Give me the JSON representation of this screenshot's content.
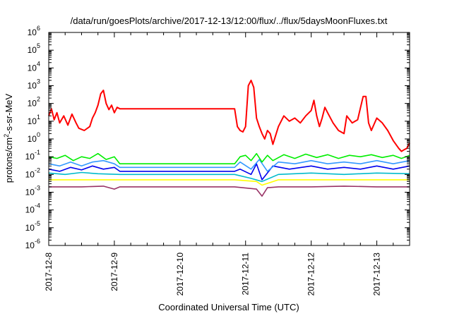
{
  "chart_data": {
    "type": "line",
    "title": "/data/run/goesPlots/archive/2017-12-13/12:00/flux/../flux/5daysMoonFluxes.txt",
    "xlabel": "Coordinated Universal Time (UTC)",
    "ylabel": "protons/cm²-s-sr-MeV",
    "yscale": "log",
    "ylim": [
      1e-06,
      1000000.0
    ],
    "xlim": [
      "2017-12-08T00:00",
      "2017-12-13T12:00"
    ],
    "x_ticks": [
      "2017-12-8",
      "2017-12-9",
      "2017-12-10",
      "2017-12-11",
      "2017-12-12",
      "2017-12-13"
    ],
    "y_ticks": [
      {
        "base": "10",
        "exp": "6"
      },
      {
        "base": "10",
        "exp": "5"
      },
      {
        "base": "10",
        "exp": "4"
      },
      {
        "base": "10",
        "exp": "3"
      },
      {
        "base": "10",
        "exp": "2"
      },
      {
        "base": "10",
        "exp": "1"
      },
      {
        "base": "10",
        "exp": "0"
      },
      {
        "base": "10",
        "exp": "-1"
      },
      {
        "base": "10",
        "exp": "-2"
      },
      {
        "base": "10",
        "exp": "-3"
      },
      {
        "base": "10",
        "exp": "-4"
      },
      {
        "base": "10",
        "exp": "-5"
      },
      {
        "base": "10",
        "exp": "-6"
      }
    ],
    "grid": false,
    "legend": "none",
    "series": [
      {
        "color": "#ff0000",
        "points": [
          [
            "2017-12-08T00:00",
            20
          ],
          [
            "2017-12-08T01:00",
            50
          ],
          [
            "2017-12-08T02:00",
            12
          ],
          [
            "2017-12-08T03:00",
            30
          ],
          [
            "2017-12-08T04:00",
            8
          ],
          [
            "2017-12-08T05:30",
            20
          ],
          [
            "2017-12-08T07:00",
            6
          ],
          [
            "2017-12-08T08:30",
            25
          ],
          [
            "2017-12-08T10:00",
            8
          ],
          [
            "2017-12-08T11:00",
            4
          ],
          [
            "2017-12-08T13:00",
            3
          ],
          [
            "2017-12-08T15:00",
            5
          ],
          [
            "2017-12-08T16:00",
            15
          ],
          [
            "2017-12-08T17:00",
            30
          ],
          [
            "2017-12-08T18:00",
            80
          ],
          [
            "2017-12-08T19:00",
            350
          ],
          [
            "2017-12-08T20:00",
            550
          ],
          [
            "2017-12-08T21:00",
            100
          ],
          [
            "2017-12-08T22:00",
            45
          ],
          [
            "2017-12-08T23:00",
            80
          ],
          [
            "2017-12-09T00:00",
            30
          ],
          [
            "2017-12-09T01:00",
            60
          ],
          [
            "2017-12-09T02:00",
            50
          ],
          [
            "2017-12-10T20:00",
            50
          ],
          [
            "2017-12-10T21:00",
            5
          ],
          [
            "2017-12-10T22:00",
            3
          ],
          [
            "2017-12-10T23:00",
            2.5
          ],
          [
            "2017-12-11T00:00",
            5
          ],
          [
            "2017-12-11T01:00",
            1000
          ],
          [
            "2017-12-11T02:00",
            2000
          ],
          [
            "2017-12-11T03:00",
            800
          ],
          [
            "2017-12-11T04:00",
            15
          ],
          [
            "2017-12-11T05:00",
            5
          ],
          [
            "2017-12-11T06:00",
            2
          ],
          [
            "2017-12-11T07:00",
            1
          ],
          [
            "2017-12-11T08:00",
            3
          ],
          [
            "2017-12-11T09:00",
            2
          ],
          [
            "2017-12-11T10:00",
            0.5
          ],
          [
            "2017-12-11T12:00",
            5
          ],
          [
            "2017-12-11T14:00",
            20
          ],
          [
            "2017-12-11T16:00",
            10
          ],
          [
            "2017-12-11T18:00",
            15
          ],
          [
            "2017-12-11T20:00",
            8
          ],
          [
            "2017-12-11T22:00",
            20
          ],
          [
            "2017-12-12T00:00",
            40
          ],
          [
            "2017-12-12T01:00",
            150
          ],
          [
            "2017-12-12T02:00",
            20
          ],
          [
            "2017-12-12T03:00",
            5
          ],
          [
            "2017-12-12T04:00",
            15
          ],
          [
            "2017-12-12T05:00",
            60
          ],
          [
            "2017-12-12T06:00",
            30
          ],
          [
            "2017-12-12T08:00",
            8
          ],
          [
            "2017-12-12T10:00",
            3
          ],
          [
            "2017-12-12T12:00",
            2
          ],
          [
            "2017-12-12T13:00",
            20
          ],
          [
            "2017-12-12T15:00",
            8
          ],
          [
            "2017-12-12T17:00",
            12
          ],
          [
            "2017-12-12T19:00",
            250
          ],
          [
            "2017-12-12T20:00",
            250
          ],
          [
            "2017-12-12T21:00",
            8
          ],
          [
            "2017-12-12T22:00",
            3
          ],
          [
            "2017-12-13T00:00",
            15
          ],
          [
            "2017-12-13T02:00",
            8
          ],
          [
            "2017-12-13T04:00",
            3
          ],
          [
            "2017-12-13T06:00",
            0.8
          ],
          [
            "2017-12-13T08:00",
            0.3
          ],
          [
            "2017-12-13T09:00",
            0.2
          ],
          [
            "2017-12-13T10:00",
            0.25
          ],
          [
            "2017-12-13T11:00",
            0.3
          ],
          [
            "2017-12-13T12:00",
            0.6
          ]
        ]
      },
      {
        "color": "#00ee00",
        "points": [
          [
            "2017-12-08T00:00",
            0.1
          ],
          [
            "2017-12-08T03:00",
            0.08
          ],
          [
            "2017-12-08T06:00",
            0.12
          ],
          [
            "2017-12-08T09:00",
            0.06
          ],
          [
            "2017-12-08T12:00",
            0.1
          ],
          [
            "2017-12-08T15:00",
            0.08
          ],
          [
            "2017-12-08T18:00",
            0.15
          ],
          [
            "2017-12-08T21:00",
            0.07
          ],
          [
            "2017-12-09T00:00",
            0.1
          ],
          [
            "2017-12-09T02:00",
            0.04
          ],
          [
            "2017-12-10T20:00",
            0.04
          ],
          [
            "2017-12-10T22:00",
            0.1
          ],
          [
            "2017-12-11T00:00",
            0.12
          ],
          [
            "2017-12-11T02:00",
            0.06
          ],
          [
            "2017-12-11T04:00",
            0.15
          ],
          [
            "2017-12-11T06:00",
            0.05
          ],
          [
            "2017-12-11T08:00",
            0.12
          ],
          [
            "2017-12-11T10:00",
            0.06
          ],
          [
            "2017-12-11T14:00",
            0.13
          ],
          [
            "2017-12-11T18:00",
            0.08
          ],
          [
            "2017-12-11T22:00",
            0.14
          ],
          [
            "2017-12-12T02:00",
            0.09
          ],
          [
            "2017-12-12T06:00",
            0.13
          ],
          [
            "2017-12-12T10:00",
            0.08
          ],
          [
            "2017-12-12T14:00",
            0.12
          ],
          [
            "2017-12-12T18:00",
            0.1
          ],
          [
            "2017-12-12T22:00",
            0.13
          ],
          [
            "2017-12-13T02:00",
            0.09
          ],
          [
            "2017-12-13T06:00",
            0.12
          ],
          [
            "2017-12-13T09:00",
            0.08
          ],
          [
            "2017-12-13T12:00",
            0.12
          ]
        ]
      },
      {
        "color": "#3399ff",
        "points": [
          [
            "2017-12-08T00:00",
            0.04
          ],
          [
            "2017-12-08T04:00",
            0.03
          ],
          [
            "2017-12-08T08:00",
            0.05
          ],
          [
            "2017-12-08T12:00",
            0.03
          ],
          [
            "2017-12-08T16:00",
            0.05
          ],
          [
            "2017-12-08T20:00",
            0.06
          ],
          [
            "2017-12-09T00:00",
            0.04
          ],
          [
            "2017-12-09T02:00",
            0.025
          ],
          [
            "2017-12-10T20:00",
            0.025
          ],
          [
            "2017-12-10T22:00",
            0.05
          ],
          [
            "2017-12-11T02:00",
            0.02
          ],
          [
            "2017-12-11T05:00",
            0.07
          ],
          [
            "2017-12-11T08:00",
            0.015
          ],
          [
            "2017-12-11T12:00",
            0.05
          ],
          [
            "2017-12-11T18:00",
            0.04
          ],
          [
            "2017-12-12T00:00",
            0.06
          ],
          [
            "2017-12-12T06:00",
            0.04
          ],
          [
            "2017-12-12T12:00",
            0.05
          ],
          [
            "2017-12-12T18:00",
            0.04
          ],
          [
            "2017-12-13T00:00",
            0.06
          ],
          [
            "2017-12-13T06:00",
            0.04
          ],
          [
            "2017-12-13T12:00",
            0.06
          ]
        ]
      },
      {
        "color": "#0000ee",
        "points": [
          [
            "2017-12-08T00:00",
            0.02
          ],
          [
            "2017-12-08T04:00",
            0.015
          ],
          [
            "2017-12-08T08:00",
            0.025
          ],
          [
            "2017-12-08T12:00",
            0.018
          ],
          [
            "2017-12-08T16:00",
            0.03
          ],
          [
            "2017-12-08T20:00",
            0.02
          ],
          [
            "2017-12-09T00:00",
            0.025
          ],
          [
            "2017-12-09T02:00",
            0.015
          ],
          [
            "2017-12-10T20:00",
            0.015
          ],
          [
            "2017-12-10T22:00",
            0.02
          ],
          [
            "2017-12-11T02:00",
            0.01
          ],
          [
            "2017-12-11T04:00",
            0.04
          ],
          [
            "2017-12-11T06:00",
            0.005
          ],
          [
            "2017-12-11T10:00",
            0.03
          ],
          [
            "2017-12-11T16:00",
            0.02
          ],
          [
            "2017-12-12T00:00",
            0.03
          ],
          [
            "2017-12-12T06:00",
            0.02
          ],
          [
            "2017-12-12T12:00",
            0.025
          ],
          [
            "2017-12-12T18:00",
            0.02
          ],
          [
            "2017-12-13T00:00",
            0.03
          ],
          [
            "2017-12-13T06:00",
            0.02
          ],
          [
            "2017-12-13T12:00",
            0.03
          ]
        ]
      },
      {
        "color": "#00bbcc",
        "points": [
          [
            "2017-12-08T00:00",
            0.012
          ],
          [
            "2017-12-08T06:00",
            0.01
          ],
          [
            "2017-12-08T12:00",
            0.013
          ],
          [
            "2017-12-08T18:00",
            0.011
          ],
          [
            "2017-12-09T02:00",
            0.01
          ],
          [
            "2017-12-10T20:00",
            0.01
          ],
          [
            "2017-12-11T02:00",
            0.006
          ],
          [
            "2017-12-11T06:00",
            0.004
          ],
          [
            "2017-12-11T12:00",
            0.01
          ],
          [
            "2017-12-12T00:00",
            0.012
          ],
          [
            "2017-12-12T12:00",
            0.01
          ],
          [
            "2017-12-13T00:00",
            0.012
          ],
          [
            "2017-12-13T12:00",
            0.011
          ]
        ]
      },
      {
        "color": "#ffff00",
        "points": [
          [
            "2017-12-08T00:00",
            0.005
          ],
          [
            "2017-12-08T12:00",
            0.005
          ],
          [
            "2017-12-09T02:00",
            0.005
          ],
          [
            "2017-12-10T20:00",
            0.005
          ],
          [
            "2017-12-11T04:00",
            0.004
          ],
          [
            "2017-12-11T06:00",
            0.0025
          ],
          [
            "2017-12-11T12:00",
            0.005
          ],
          [
            "2017-12-12T00:00",
            0.005
          ],
          [
            "2017-12-12T12:00",
            0.005
          ],
          [
            "2017-12-13T00:00",
            0.005
          ],
          [
            "2017-12-13T12:00",
            0.005
          ]
        ]
      },
      {
        "color": "#993366",
        "points": [
          [
            "2017-12-08T00:00",
            0.002
          ],
          [
            "2017-12-08T12:00",
            0.002
          ],
          [
            "2017-12-08T20:00",
            0.0022
          ],
          [
            "2017-12-09T00:00",
            0.0015
          ],
          [
            "2017-12-09T02:00",
            0.002
          ],
          [
            "2017-12-10T20:00",
            0.002
          ],
          [
            "2017-12-11T04:00",
            0.0015
          ],
          [
            "2017-12-11T06:00",
            0.0006
          ],
          [
            "2017-12-11T08:00",
            0.0018
          ],
          [
            "2017-12-11T12:00",
            0.002
          ],
          [
            "2017-12-12T00:00",
            0.002
          ],
          [
            "2017-12-12T12:00",
            0.0022
          ],
          [
            "2017-12-13T00:00",
            0.002
          ],
          [
            "2017-12-13T12:00",
            0.002
          ]
        ]
      }
    ]
  }
}
